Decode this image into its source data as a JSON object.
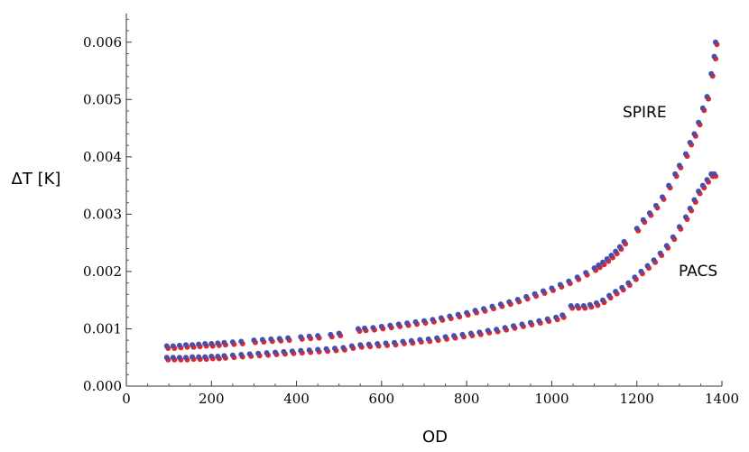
{
  "chart_data": {
    "type": "scatter",
    "xlabel": "OD",
    "ylabel": "ΔT [K]",
    "xlim": [
      0,
      1400
    ],
    "ylim": [
      0,
      0.0065
    ],
    "x_ticks": [
      0,
      200,
      400,
      600,
      800,
      1000,
      1200,
      1400
    ],
    "x_tick_labels": [
      "0",
      "200",
      "400",
      "600",
      "800",
      "1000",
      "1200",
      "1400"
    ],
    "y_ticks": [
      0,
      0.001,
      0.002,
      0.003,
      0.004,
      0.005,
      0.006
    ],
    "y_tick_labels": [
      "0.000",
      "0.001",
      "0.002",
      "0.003",
      "0.004",
      "0.005",
      "0.006"
    ],
    "grid": false,
    "colors": {
      "red_points": "#e8262a",
      "blue_points": "#4a4ea6"
    },
    "series": [
      {
        "label": "SPIRE",
        "points": [
          [
            95,
            0.0007
          ],
          [
            110,
            0.0007
          ],
          [
            125,
            0.00071
          ],
          [
            140,
            0.00072
          ],
          [
            155,
            0.00072
          ],
          [
            170,
            0.00073
          ],
          [
            185,
            0.00074
          ],
          [
            200,
            0.00074
          ],
          [
            215,
            0.00075
          ],
          [
            230,
            0.00076
          ],
          [
            250,
            0.00077
          ],
          [
            270,
            0.00078
          ],
          [
            300,
            0.0008
          ],
          [
            320,
            0.00081
          ],
          [
            340,
            0.00082
          ],
          [
            360,
            0.00083
          ],
          [
            380,
            0.00084
          ],
          [
            410,
            0.00086
          ],
          [
            430,
            0.00087
          ],
          [
            450,
            0.00088
          ],
          [
            480,
            0.0009
          ],
          [
            500,
            0.00092
          ],
          [
            545,
            0.001
          ],
          [
            560,
            0.00101
          ],
          [
            580,
            0.00102
          ],
          [
            600,
            0.00104
          ],
          [
            620,
            0.00106
          ],
          [
            640,
            0.00108
          ],
          [
            660,
            0.0011
          ],
          [
            680,
            0.00112
          ],
          [
            700,
            0.00114
          ],
          [
            720,
            0.00116
          ],
          [
            740,
            0.00119
          ],
          [
            760,
            0.00122
          ],
          [
            780,
            0.00125
          ],
          [
            800,
            0.00128
          ],
          [
            820,
            0.00132
          ],
          [
            840,
            0.00135
          ],
          [
            860,
            0.00139
          ],
          [
            880,
            0.00143
          ],
          [
            900,
            0.00147
          ],
          [
            920,
            0.00151
          ],
          [
            940,
            0.00156
          ],
          [
            960,
            0.00161
          ],
          [
            980,
            0.00166
          ],
          [
            1000,
            0.00171
          ],
          [
            1020,
            0.00177
          ],
          [
            1040,
            0.00183
          ],
          [
            1060,
            0.0019
          ],
          [
            1080,
            0.00198
          ],
          [
            1100,
            0.00206
          ],
          [
            1110,
            0.00211
          ],
          [
            1120,
            0.00216
          ],
          [
            1130,
            0.00222
          ],
          [
            1140,
            0.00228
          ],
          [
            1150,
            0.00235
          ],
          [
            1160,
            0.00243
          ],
          [
            1170,
            0.00252
          ],
          [
            1200,
            0.00275
          ],
          [
            1215,
            0.0029
          ],
          [
            1230,
            0.00302
          ],
          [
            1245,
            0.00315
          ],
          [
            1260,
            0.0033
          ],
          [
            1275,
            0.0035
          ],
          [
            1290,
            0.0037
          ],
          [
            1300,
            0.00385
          ],
          [
            1315,
            0.00405
          ],
          [
            1325,
            0.00425
          ],
          [
            1335,
            0.0044
          ],
          [
            1345,
            0.0046
          ],
          [
            1355,
            0.00485
          ],
          [
            1365,
            0.00505
          ],
          [
            1375,
            0.00545
          ],
          [
            1382,
            0.00575
          ],
          [
            1385,
            0.006
          ]
        ]
      },
      {
        "label": "PACS",
        "points": [
          [
            95,
            0.0005
          ],
          [
            110,
            0.0005
          ],
          [
            125,
            0.0005
          ],
          [
            140,
            0.0005
          ],
          [
            155,
            0.00051
          ],
          [
            170,
            0.00051
          ],
          [
            185,
            0.00051
          ],
          [
            200,
            0.00052
          ],
          [
            215,
            0.00052
          ],
          [
            230,
            0.00053
          ],
          [
            250,
            0.00054
          ],
          [
            270,
            0.00055
          ],
          [
            290,
            0.00056
          ],
          [
            310,
            0.00057
          ],
          [
            330,
            0.00058
          ],
          [
            350,
            0.00059
          ],
          [
            370,
            0.0006
          ],
          [
            390,
            0.00061
          ],
          [
            410,
            0.00062
          ],
          [
            430,
            0.00063
          ],
          [
            450,
            0.00064
          ],
          [
            470,
            0.00065
          ],
          [
            490,
            0.00066
          ],
          [
            510,
            0.00067
          ],
          [
            530,
            0.0007
          ],
          [
            550,
            0.00072
          ],
          [
            570,
            0.00073
          ],
          [
            590,
            0.00074
          ],
          [
            610,
            0.00075
          ],
          [
            630,
            0.00076
          ],
          [
            650,
            0.00078
          ],
          [
            670,
            0.00079
          ],
          [
            690,
            0.00081
          ],
          [
            710,
            0.00082
          ],
          [
            730,
            0.00084
          ],
          [
            750,
            0.00086
          ],
          [
            770,
            0.00088
          ],
          [
            790,
            0.0009
          ],
          [
            810,
            0.00092
          ],
          [
            830,
            0.00094
          ],
          [
            850,
            0.00097
          ],
          [
            870,
            0.00099
          ],
          [
            890,
            0.00102
          ],
          [
            910,
            0.00105
          ],
          [
            930,
            0.00108
          ],
          [
            950,
            0.00111
          ],
          [
            970,
            0.00114
          ],
          [
            990,
            0.00117
          ],
          [
            1010,
            0.0012
          ],
          [
            1025,
            0.00124
          ],
          [
            1045,
            0.0014
          ],
          [
            1060,
            0.0014
          ],
          [
            1075,
            0.0014
          ],
          [
            1090,
            0.00142
          ],
          [
            1105,
            0.00145
          ],
          [
            1120,
            0.0015
          ],
          [
            1135,
            0.00158
          ],
          [
            1150,
            0.00165
          ],
          [
            1165,
            0.00172
          ],
          [
            1180,
            0.0018
          ],
          [
            1195,
            0.0019
          ],
          [
            1210,
            0.002
          ],
          [
            1225,
            0.0021
          ],
          [
            1240,
            0.0022
          ],
          [
            1255,
            0.00232
          ],
          [
            1270,
            0.00245
          ],
          [
            1285,
            0.0026
          ],
          [
            1300,
            0.00278
          ],
          [
            1315,
            0.00295
          ],
          [
            1325,
            0.0031
          ],
          [
            1335,
            0.00325
          ],
          [
            1345,
            0.0034
          ],
          [
            1355,
            0.0035
          ],
          [
            1365,
            0.0036
          ],
          [
            1375,
            0.0037
          ],
          [
            1382,
            0.0037
          ]
        ]
      }
    ]
  }
}
